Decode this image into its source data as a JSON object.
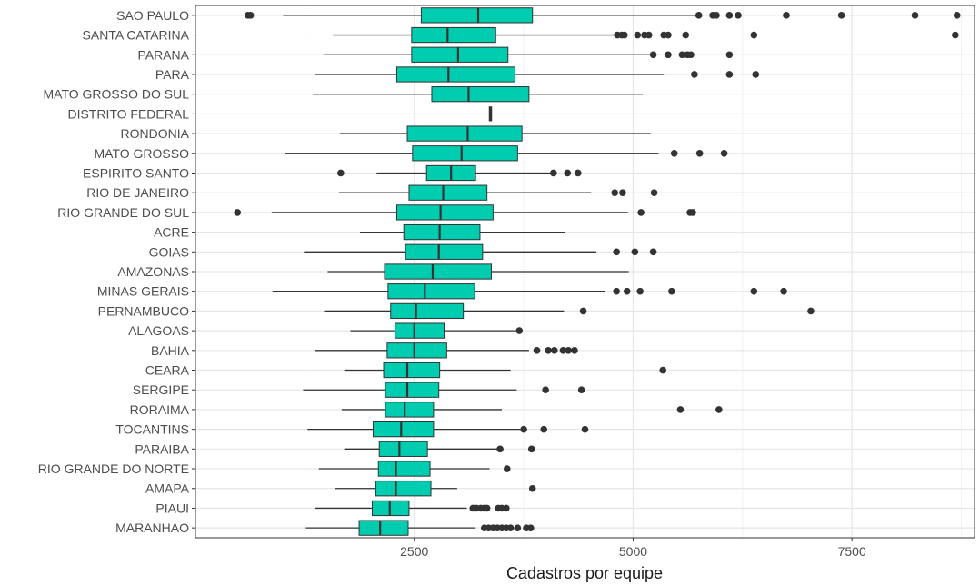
{
  "chart_data": {
    "type": "boxplot",
    "orientation": "horizontal",
    "title": "",
    "xlabel": "Cadastros por equipe",
    "ylabel": "",
    "xlim": [
      0,
      8900
    ],
    "x_ticks": [
      2500,
      5000,
      7500
    ],
    "x_tick_labels": [
      "2500",
      "5000",
      "7500"
    ],
    "grid": true,
    "box_color": "#00CDB0",
    "categories": [
      {
        "name": "SAO PAULO",
        "whisker_low": 1000,
        "q1": 2580,
        "median": 3230,
        "q3": 3850,
        "whisker_high": 5720,
        "outliers": [
          600,
          630,
          5750,
          5910,
          5950,
          6100,
          6200,
          6750,
          7380,
          8220,
          8700
        ]
      },
      {
        "name": "SANTA CATARINA",
        "whisker_low": 1570,
        "q1": 2470,
        "median": 2880,
        "q3": 3430,
        "whisker_high": 4790,
        "outliers": [
          4820,
          4870,
          4900,
          5050,
          5130,
          5180,
          5350,
          5400,
          5600,
          6380,
          8680
        ]
      },
      {
        "name": "PARANA",
        "whisker_low": 1460,
        "q1": 2470,
        "median": 3000,
        "q3": 3570,
        "whisker_high": 5190,
        "outliers": [
          5230,
          5400,
          5560,
          5620,
          5660,
          6100
        ]
      },
      {
        "name": "PARA",
        "whisker_low": 1360,
        "q1": 2300,
        "median": 2890,
        "q3": 3650,
        "whisker_high": 5350,
        "outliers": [
          5700,
          6100,
          6400
        ]
      },
      {
        "name": "MATO GROSSO DO SUL",
        "whisker_low": 1340,
        "q1": 2700,
        "median": 3120,
        "q3": 3810,
        "whisker_high": 5110,
        "outliers": []
      },
      {
        "name": "DISTRITO FEDERAL",
        "whisker_low": 3370,
        "q1": 3370,
        "median": 3370,
        "q3": 3370,
        "whisker_high": 3370,
        "outliers": []
      },
      {
        "name": "RONDONIA",
        "whisker_low": 1650,
        "q1": 2420,
        "median": 3110,
        "q3": 3730,
        "whisker_high": 5200,
        "outliers": []
      },
      {
        "name": "MATO GROSSO",
        "whisker_low": 1020,
        "q1": 2480,
        "median": 3040,
        "q3": 3680,
        "whisker_high": 5290,
        "outliers": [
          5470,
          5760,
          6040
        ]
      },
      {
        "name": "ESPIRITO SANTO",
        "whisker_low": 2070,
        "q1": 2640,
        "median": 2920,
        "q3": 3200,
        "whisker_high": 4070,
        "outliers": [
          1660,
          4090,
          4250,
          4370
        ]
      },
      {
        "name": "RIO DE JANEIRO",
        "whisker_low": 1640,
        "q1": 2440,
        "median": 2830,
        "q3": 3330,
        "whisker_high": 4520,
        "outliers": [
          4790,
          4880,
          5240
        ]
      },
      {
        "name": "RIO GRANDE DO SUL",
        "whisker_low": 870,
        "q1": 2300,
        "median": 2800,
        "q3": 3400,
        "whisker_high": 4940,
        "outliers": [
          480,
          5090,
          5650,
          5680
        ]
      },
      {
        "name": "ACRE",
        "whisker_low": 1880,
        "q1": 2380,
        "median": 2790,
        "q3": 3250,
        "whisker_high": 4220,
        "outliers": []
      },
      {
        "name": "GOIAS",
        "whisker_low": 1240,
        "q1": 2400,
        "median": 2780,
        "q3": 3280,
        "whisker_high": 4580,
        "outliers": [
          4810,
          5020,
          5230
        ]
      },
      {
        "name": "AMAZONAS",
        "whisker_low": 1510,
        "q1": 2160,
        "median": 2710,
        "q3": 3380,
        "whisker_high": 4950,
        "outliers": []
      },
      {
        "name": "MINAS GERAIS",
        "whisker_low": 880,
        "q1": 2200,
        "median": 2620,
        "q3": 3190,
        "whisker_high": 4680,
        "outliers": [
          4810,
          4930,
          5080,
          5440,
          6380,
          6720
        ]
      },
      {
        "name": "PERNAMBUCO",
        "whisker_low": 1470,
        "q1": 2230,
        "median": 2520,
        "q3": 3060,
        "whisker_high": 4210,
        "outliers": [
          4430,
          7030
        ]
      },
      {
        "name": "ALAGOAS",
        "whisker_low": 1770,
        "q1": 2280,
        "median": 2500,
        "q3": 2840,
        "whisker_high": 3680,
        "outliers": [
          3700
        ]
      },
      {
        "name": "BAHIA",
        "whisker_low": 1370,
        "q1": 2190,
        "median": 2500,
        "q3": 2870,
        "whisker_high": 3810,
        "outliers": [
          3900,
          4030,
          4100,
          4200,
          4260,
          4330
        ]
      },
      {
        "name": "CEARA",
        "whisker_low": 1700,
        "q1": 2150,
        "median": 2420,
        "q3": 2790,
        "whisker_high": 3600,
        "outliers": [
          5340
        ]
      },
      {
        "name": "SERGIPE",
        "whisker_low": 1230,
        "q1": 2170,
        "median": 2420,
        "q3": 2780,
        "whisker_high": 3670,
        "outliers": [
          4000,
          4410
        ]
      },
      {
        "name": "RORAIMA",
        "whisker_low": 1670,
        "q1": 2170,
        "median": 2390,
        "q3": 2720,
        "whisker_high": 3500,
        "outliers": [
          5540,
          5980
        ]
      },
      {
        "name": "TOCANTINS",
        "whisker_low": 1280,
        "q1": 2030,
        "median": 2350,
        "q3": 2720,
        "whisker_high": 3710,
        "outliers": [
          3750,
          3980,
          4450
        ]
      },
      {
        "name": "PARAIBA",
        "whisker_low": 1700,
        "q1": 2100,
        "median": 2330,
        "q3": 2650,
        "whisker_high": 3460,
        "outliers": [
          3480,
          3840
        ]
      },
      {
        "name": "RIO GRANDE DO NORTE",
        "whisker_low": 1410,
        "q1": 2090,
        "median": 2290,
        "q3": 2680,
        "whisker_high": 3360,
        "outliers": [
          3560
        ]
      },
      {
        "name": "AMAPA",
        "whisker_low": 1590,
        "q1": 2060,
        "median": 2290,
        "q3": 2690,
        "whisker_high": 2990,
        "outliers": [
          3850
        ]
      },
      {
        "name": "PIAUI",
        "whisker_low": 1360,
        "q1": 2020,
        "median": 2220,
        "q3": 2440,
        "whisker_high": 3100,
        "outliers": [
          3170,
          3210,
          3260,
          3300,
          3330,
          3460,
          3500,
          3550
        ]
      },
      {
        "name": "MARANHAO",
        "whisker_low": 1260,
        "q1": 1870,
        "median": 2110,
        "q3": 2430,
        "whisker_high": 3200,
        "outliers": [
          3300,
          3350,
          3400,
          3450,
          3500,
          3550,
          3600,
          3680,
          3780,
          3830
        ]
      }
    ]
  }
}
